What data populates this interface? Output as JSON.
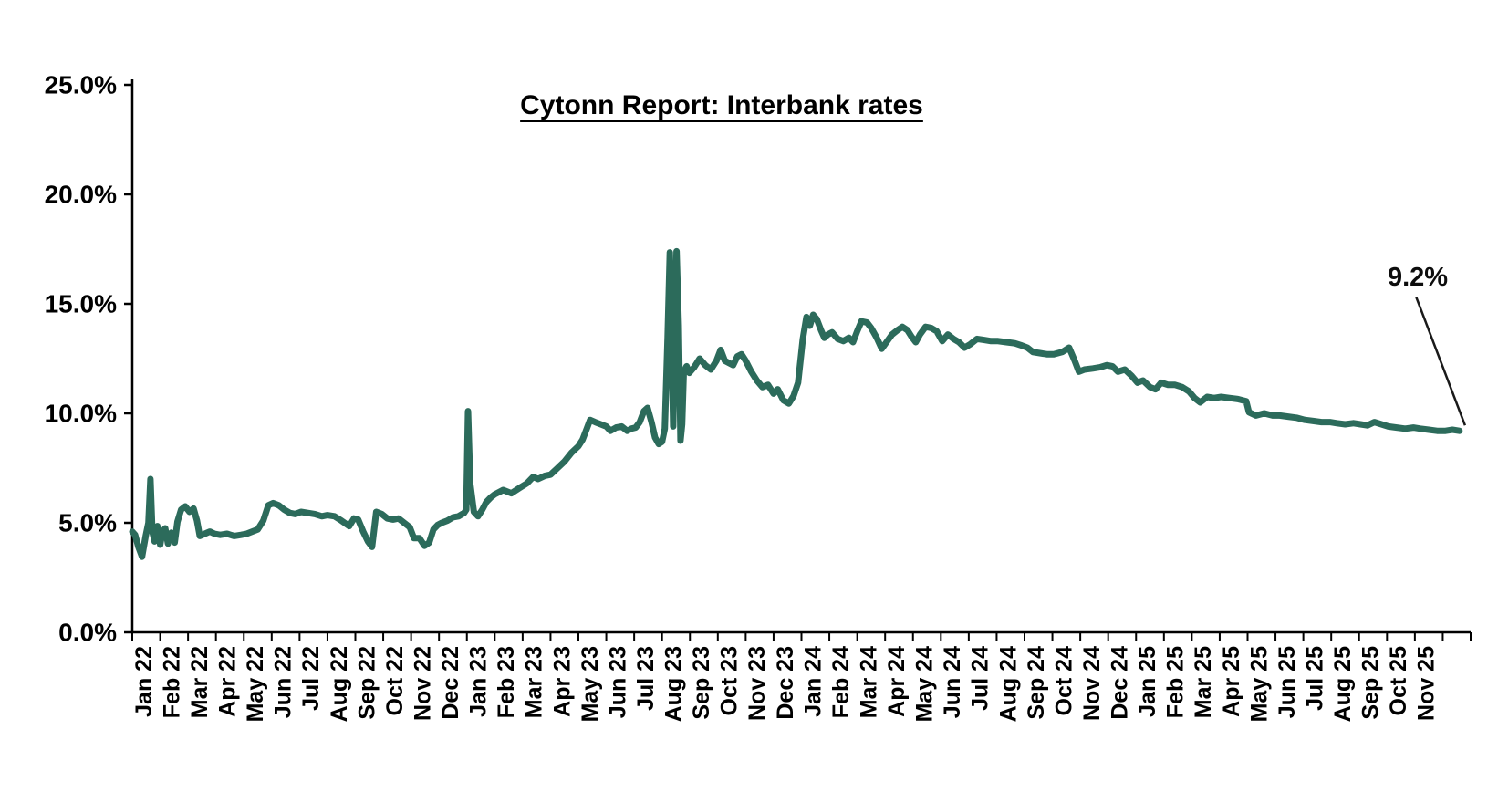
{
  "title": "Cytonn Report: Interbank rates",
  "annotation_label": "9.2%",
  "colors": {
    "line": "#2C6B5B",
    "axis": "#000000",
    "annotation_line": "#1a1a1a",
    "background": "#ffffff"
  },
  "chart_data": {
    "type": "line",
    "title": "Cytonn Report: Interbank rates",
    "legend": "none",
    "grid": false,
    "ylim": [
      0,
      25
    ],
    "y_tick_step": 5,
    "y_ticks": [
      "0.0%",
      "5.0%",
      "10.0%",
      "15.0%",
      "20.0%",
      "25.0%"
    ],
    "x_categories": [
      "Jan 22",
      "Feb 22",
      "Mar 22",
      "Apr 22",
      "May 22",
      "Jun 22",
      "Jul 22",
      "Aug 22",
      "Sep 22",
      "Oct 22",
      "Nov 22",
      "Dec 22",
      "Jan 23",
      "Feb 23",
      "Mar 23",
      "Apr 23",
      "May 23",
      "Jun 23",
      "Jul 23",
      "Aug 23",
      "Sep 23",
      "Oct 23",
      "Nov 23",
      "Dec 23",
      "Jan 24",
      "Feb 24",
      "Mar 24",
      "Apr 24",
      "May 24",
      "Jun 24",
      "Jul 24",
      "Aug 24",
      "Sep 24",
      "Oct 24",
      "Nov 24",
      "Dec 24",
      "Jan 25",
      "Feb 25",
      "Mar 25",
      "Apr 25",
      "May 25",
      "Jun 25",
      "Jul 25",
      "Aug 25",
      "Sep 25",
      "Oct 25",
      "Nov 25"
    ],
    "line_color": "#2C6B5B",
    "series": [
      {
        "name": "Interbank rate (%)",
        "x_unit": "months since Jan 2022 (fractional)",
        "points": [
          [
            0.0,
            4.6
          ],
          [
            0.1,
            4.45
          ],
          [
            0.22,
            3.9
          ],
          [
            0.35,
            3.45
          ],
          [
            0.48,
            4.4
          ],
          [
            0.58,
            5.0
          ],
          [
            0.65,
            7.0
          ],
          [
            0.72,
            4.6
          ],
          [
            0.8,
            4.15
          ],
          [
            0.9,
            4.85
          ],
          [
            1.0,
            4.0
          ],
          [
            1.08,
            4.6
          ],
          [
            1.18,
            4.75
          ],
          [
            1.28,
            4.05
          ],
          [
            1.4,
            4.55
          ],
          [
            1.52,
            4.1
          ],
          [
            1.62,
            5.05
          ],
          [
            1.75,
            5.6
          ],
          [
            1.9,
            5.75
          ],
          [
            2.05,
            5.5
          ],
          [
            2.2,
            5.65
          ],
          [
            2.32,
            5.1
          ],
          [
            2.42,
            4.4
          ],
          [
            2.6,
            4.5
          ],
          [
            2.78,
            4.6
          ],
          [
            2.95,
            4.5
          ],
          [
            3.15,
            4.45
          ],
          [
            3.4,
            4.5
          ],
          [
            3.65,
            4.4
          ],
          [
            3.9,
            4.45
          ],
          [
            4.1,
            4.5
          ],
          [
            4.3,
            4.6
          ],
          [
            4.5,
            4.7
          ],
          [
            4.7,
            5.1
          ],
          [
            4.88,
            5.8
          ],
          [
            5.05,
            5.9
          ],
          [
            5.25,
            5.8
          ],
          [
            5.45,
            5.6
          ],
          [
            5.65,
            5.45
          ],
          [
            5.85,
            5.4
          ],
          [
            6.05,
            5.5
          ],
          [
            6.3,
            5.45
          ],
          [
            6.55,
            5.4
          ],
          [
            6.8,
            5.3
          ],
          [
            7.0,
            5.35
          ],
          [
            7.25,
            5.3
          ],
          [
            7.5,
            5.1
          ],
          [
            7.78,
            4.85
          ],
          [
            7.95,
            5.2
          ],
          [
            8.1,
            5.15
          ],
          [
            8.28,
            4.6
          ],
          [
            8.45,
            4.15
          ],
          [
            8.6,
            3.9
          ],
          [
            8.75,
            5.5
          ],
          [
            8.95,
            5.4
          ],
          [
            9.15,
            5.2
          ],
          [
            9.35,
            5.15
          ],
          [
            9.55,
            5.2
          ],
          [
            9.75,
            5.0
          ],
          [
            9.95,
            4.8
          ],
          [
            10.1,
            4.3
          ],
          [
            10.3,
            4.3
          ],
          [
            10.48,
            3.95
          ],
          [
            10.65,
            4.1
          ],
          [
            10.8,
            4.7
          ],
          [
            10.95,
            4.9
          ],
          [
            11.1,
            5.0
          ],
          [
            11.3,
            5.1
          ],
          [
            11.5,
            5.25
          ],
          [
            11.7,
            5.3
          ],
          [
            11.9,
            5.45
          ],
          [
            11.98,
            5.6
          ],
          [
            12.04,
            10.1
          ],
          [
            12.12,
            6.8
          ],
          [
            12.25,
            5.5
          ],
          [
            12.4,
            5.3
          ],
          [
            12.55,
            5.6
          ],
          [
            12.7,
            5.95
          ],
          [
            12.85,
            6.15
          ],
          [
            13.0,
            6.3
          ],
          [
            13.3,
            6.5
          ],
          [
            13.6,
            6.35
          ],
          [
            13.9,
            6.6
          ],
          [
            14.15,
            6.8
          ],
          [
            14.38,
            7.1
          ],
          [
            14.55,
            7.0
          ],
          [
            14.8,
            7.15
          ],
          [
            15.0,
            7.2
          ],
          [
            15.25,
            7.5
          ],
          [
            15.5,
            7.8
          ],
          [
            15.75,
            8.2
          ],
          [
            16.0,
            8.5
          ],
          [
            16.15,
            8.8
          ],
          [
            16.3,
            9.3
          ],
          [
            16.42,
            9.7
          ],
          [
            16.6,
            9.6
          ],
          [
            16.8,
            9.5
          ],
          [
            17.0,
            9.4
          ],
          [
            17.15,
            9.2
          ],
          [
            17.35,
            9.35
          ],
          [
            17.55,
            9.4
          ],
          [
            17.75,
            9.2
          ],
          [
            17.9,
            9.3
          ],
          [
            18.05,
            9.35
          ],
          [
            18.2,
            9.6
          ],
          [
            18.35,
            10.1
          ],
          [
            18.48,
            10.25
          ],
          [
            18.62,
            9.6
          ],
          [
            18.75,
            8.9
          ],
          [
            18.88,
            8.6
          ],
          [
            19.0,
            8.7
          ],
          [
            19.1,
            9.3
          ],
          [
            19.2,
            13.5
          ],
          [
            19.28,
            17.35
          ],
          [
            19.36,
            12.0
          ],
          [
            19.4,
            9.4
          ],
          [
            19.46,
            13.5
          ],
          [
            19.52,
            17.4
          ],
          [
            19.6,
            14.0
          ],
          [
            19.66,
            8.75
          ],
          [
            19.72,
            9.5
          ],
          [
            19.78,
            11.9
          ],
          [
            19.88,
            12.15
          ],
          [
            19.98,
            11.85
          ],
          [
            20.15,
            12.1
          ],
          [
            20.35,
            12.5
          ],
          [
            20.55,
            12.2
          ],
          [
            20.75,
            12.0
          ],
          [
            20.95,
            12.4
          ],
          [
            21.1,
            12.9
          ],
          [
            21.25,
            12.4
          ],
          [
            21.4,
            12.3
          ],
          [
            21.55,
            12.2
          ],
          [
            21.7,
            12.6
          ],
          [
            21.85,
            12.7
          ],
          [
            22.0,
            12.4
          ],
          [
            22.2,
            11.9
          ],
          [
            22.4,
            11.5
          ],
          [
            22.6,
            11.2
          ],
          [
            22.8,
            11.3
          ],
          [
            23.0,
            10.9
          ],
          [
            23.15,
            11.1
          ],
          [
            23.35,
            10.6
          ],
          [
            23.55,
            10.45
          ],
          [
            23.72,
            10.8
          ],
          [
            23.88,
            11.4
          ],
          [
            24.05,
            13.4
          ],
          [
            24.18,
            14.4
          ],
          [
            24.3,
            14.0
          ],
          [
            24.42,
            14.5
          ],
          [
            24.55,
            14.3
          ],
          [
            24.7,
            13.8
          ],
          [
            24.82,
            13.45
          ],
          [
            24.95,
            13.6
          ],
          [
            25.1,
            13.7
          ],
          [
            25.3,
            13.4
          ],
          [
            25.5,
            13.3
          ],
          [
            25.7,
            13.45
          ],
          [
            25.85,
            13.25
          ],
          [
            26.0,
            13.75
          ],
          [
            26.15,
            14.2
          ],
          [
            26.35,
            14.15
          ],
          [
            26.5,
            13.9
          ],
          [
            26.7,
            13.45
          ],
          [
            26.88,
            12.95
          ],
          [
            27.05,
            13.25
          ],
          [
            27.25,
            13.6
          ],
          [
            27.45,
            13.8
          ],
          [
            27.62,
            13.95
          ],
          [
            27.8,
            13.8
          ],
          [
            27.95,
            13.5
          ],
          [
            28.1,
            13.25
          ],
          [
            28.25,
            13.6
          ],
          [
            28.45,
            13.95
          ],
          [
            28.65,
            13.9
          ],
          [
            28.85,
            13.75
          ],
          [
            29.05,
            13.3
          ],
          [
            29.25,
            13.6
          ],
          [
            29.45,
            13.4
          ],
          [
            29.65,
            13.25
          ],
          [
            29.85,
            13.0
          ],
          [
            30.05,
            13.15
          ],
          [
            30.3,
            13.4
          ],
          [
            30.55,
            13.35
          ],
          [
            30.8,
            13.3
          ],
          [
            31.05,
            13.3
          ],
          [
            31.35,
            13.25
          ],
          [
            31.65,
            13.2
          ],
          [
            31.9,
            13.1
          ],
          [
            32.1,
            13.0
          ],
          [
            32.3,
            12.8
          ],
          [
            32.55,
            12.75
          ],
          [
            32.8,
            12.7
          ],
          [
            33.05,
            12.7
          ],
          [
            33.35,
            12.8
          ],
          [
            33.6,
            13.0
          ],
          [
            33.8,
            12.4
          ],
          [
            33.95,
            11.9
          ],
          [
            34.15,
            12.0
          ],
          [
            34.45,
            12.05
          ],
          [
            34.7,
            12.1
          ],
          [
            34.95,
            12.2
          ],
          [
            35.15,
            12.15
          ],
          [
            35.35,
            11.9
          ],
          [
            35.6,
            12.0
          ],
          [
            35.85,
            11.7
          ],
          [
            36.05,
            11.4
          ],
          [
            36.25,
            11.5
          ],
          [
            36.5,
            11.2
          ],
          [
            36.7,
            11.1
          ],
          [
            36.9,
            11.4
          ],
          [
            37.15,
            11.3
          ],
          [
            37.4,
            11.3
          ],
          [
            37.65,
            11.2
          ],
          [
            37.9,
            11.0
          ],
          [
            38.1,
            10.7
          ],
          [
            38.3,
            10.5
          ],
          [
            38.55,
            10.75
          ],
          [
            38.8,
            10.7
          ],
          [
            39.05,
            10.75
          ],
          [
            39.35,
            10.7
          ],
          [
            39.65,
            10.65
          ],
          [
            39.95,
            10.55
          ],
          [
            40.05,
            10.05
          ],
          [
            40.3,
            9.9
          ],
          [
            40.6,
            10.0
          ],
          [
            40.9,
            9.9
          ],
          [
            41.15,
            9.9
          ],
          [
            41.45,
            9.85
          ],
          [
            41.75,
            9.8
          ],
          [
            42.05,
            9.7
          ],
          [
            42.35,
            9.65
          ],
          [
            42.65,
            9.6
          ],
          [
            42.95,
            9.6
          ],
          [
            43.2,
            9.55
          ],
          [
            43.5,
            9.5
          ],
          [
            43.8,
            9.55
          ],
          [
            44.05,
            9.5
          ],
          [
            44.3,
            9.45
          ],
          [
            44.55,
            9.6
          ],
          [
            44.8,
            9.5
          ],
          [
            45.05,
            9.4
          ],
          [
            45.35,
            9.35
          ],
          [
            45.65,
            9.3
          ],
          [
            45.95,
            9.35
          ],
          [
            46.2,
            9.3
          ],
          [
            46.5,
            9.25
          ],
          [
            46.8,
            9.2
          ],
          [
            47.1,
            9.2
          ],
          [
            47.35,
            9.25
          ],
          [
            47.6,
            9.2
          ]
        ]
      }
    ],
    "annotation": {
      "text": "9.2%",
      "line_from": [
        46.05,
        15.3
      ],
      "points_to": [
        47.8,
        9.45
      ]
    }
  }
}
